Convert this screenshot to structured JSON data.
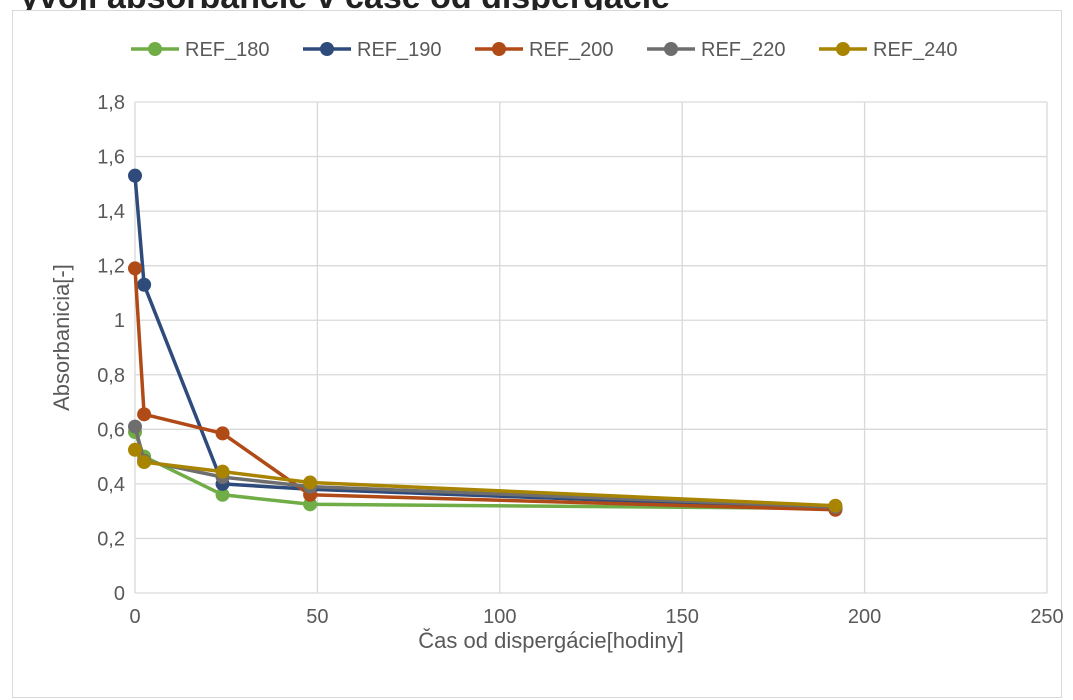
{
  "header": {
    "title": "yvojí absorbancie v čase od dispergácie"
  },
  "chart_data": {
    "type": "line",
    "title": "",
    "xlabel": "Čas od dispergácie[hodiny]",
    "ylabel": "Absorbanicia[-]",
    "xlim": [
      0,
      250
    ],
    "ylim": [
      0,
      1.8
    ],
    "x_ticks": [
      "0",
      "50",
      "100",
      "150",
      "200",
      "250"
    ],
    "y_ticks": [
      "0",
      "0,2",
      "0,4",
      "0,6",
      "0,8",
      "1",
      "1,2",
      "1,4",
      "1,6",
      "1,8"
    ],
    "grid": true,
    "legend_position": "top",
    "series": [
      {
        "name": "REF_180",
        "color": "#70ad47",
        "x": [
          0,
          2.5,
          24,
          48,
          192
        ],
        "y": [
          0.59,
          0.5,
          0.36,
          0.325,
          0.31
        ]
      },
      {
        "name": "REF_190",
        "color": "#2f4b7c",
        "x": [
          0,
          2.5,
          24,
          48,
          192
        ],
        "y": [
          1.53,
          1.13,
          0.4,
          0.38,
          0.31
        ]
      },
      {
        "name": "REF_200",
        "color": "#b04a17",
        "x": [
          0,
          2.5,
          24,
          48,
          192
        ],
        "y": [
          1.19,
          0.655,
          0.585,
          0.36,
          0.305
        ]
      },
      {
        "name": "REF_220",
        "color": "#6e6e6e",
        "x": [
          0,
          2.5,
          24,
          48,
          192
        ],
        "y": [
          0.61,
          0.485,
          0.425,
          0.39,
          0.315
        ]
      },
      {
        "name": "REF_240",
        "color": "#a88400",
        "x": [
          0,
          2.5,
          24,
          48,
          192
        ],
        "y": [
          0.525,
          0.48,
          0.445,
          0.405,
          0.32
        ]
      }
    ]
  }
}
